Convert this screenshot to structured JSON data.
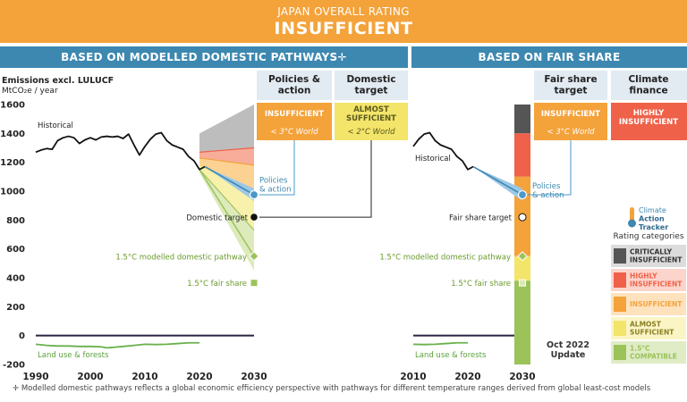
{
  "header": {
    "title": "JAPAN OVERALL RATING",
    "rating": "INSUFFICIENT"
  },
  "sections": {
    "left": "BASED ON MODELLED DOMESTIC PATHWAYS✛",
    "right": "BASED ON FAIR SHARE"
  },
  "columns": [
    {
      "id": "policies",
      "title_lines": [
        "Policies &",
        "action"
      ],
      "rating_lines": [
        "INSUFFICIENT"
      ],
      "warming": "< 3°C World",
      "color": "#f4a23a",
      "header_bg": "#e2eaf2"
    },
    {
      "id": "domestic",
      "title_lines": [
        "Domestic",
        "target"
      ],
      "rating_lines": [
        "ALMOST",
        "SUFFICIENT"
      ],
      "warming": "< 2°C World",
      "color": "#f3e46a",
      "header_bg": "#e2eaf2"
    },
    {
      "id": "fairshare",
      "title_lines": [
        "Fair share",
        "target"
      ],
      "rating_lines": [
        "INSUFFICIENT"
      ],
      "warming": "< 3°C World",
      "color": "#f4a23a",
      "header_bg": "#e2eaf2"
    },
    {
      "id": "finance",
      "title_lines": [
        "Climate",
        "finance"
      ],
      "rating_lines": [
        "HIGHLY",
        "INSUFFICIENT"
      ],
      "warming": "",
      "color": "#ef6149",
      "header_bg": "#e2eaf2"
    }
  ],
  "legend": {
    "logo_lines": [
      "Climate",
      "Action",
      "Tracker"
    ],
    "title": "Rating categories",
    "items": [
      {
        "lines": [
          "CRITICALLY",
          "INSUFFICIENT"
        ],
        "color": "#555555",
        "bg": "#dcdcdc"
      },
      {
        "lines": [
          "HIGHLY",
          "INSUFFICIENT"
        ],
        "color": "#ef6149",
        "bg": "#fbd4cb"
      },
      {
        "lines": [
          "INSUFFICIENT"
        ],
        "color": "#f4a23a",
        "bg": "#fde2bd"
      },
      {
        "lines": [
          "ALMOST",
          "SUFFICIENT"
        ],
        "color": "#f3e46a",
        "bg": "#fbf5c6"
      },
      {
        "lines": [
          "1.5°C",
          "COMPATIBLE"
        ],
        "color": "#9bc35a",
        "bg": "#dfecc6"
      }
    ]
  },
  "update": [
    "Oct 2022",
    "Update"
  ],
  "footnote": "✛ Modelled domestic pathways reflects a global economic efficiency perspective with pathways for different temperature ranges derived from global least-cost models",
  "colors": {
    "orange": "#f4a23a",
    "yellow": "#f3e46a",
    "red": "#ef6149",
    "green": "#9bc35a",
    "grey": "#555555",
    "blue": "#3d88b0",
    "line_blue": "#4a98c9",
    "lulucf": "#6ab04c"
  },
  "chart_data": [
    {
      "type": "line",
      "title": "Emissions excl. LULUCF",
      "ylabel": "MtCO₂e / year",
      "ylim": [
        -200,
        1600
      ],
      "yticks": [
        -200,
        0,
        200,
        400,
        600,
        800,
        1000,
        1200,
        1400,
        1600
      ],
      "xlim": [
        1990,
        2030
      ],
      "xticks": [
        1990,
        2000,
        2010,
        2020,
        2030
      ],
      "historical_label": "Historical",
      "lulucf_label": "Land use & forests",
      "historical": {
        "x": [
          1990,
          1991,
          1992,
          1993,
          1994,
          1995,
          1996,
          1997,
          1998,
          1999,
          2000,
          2001,
          2002,
          2003,
          2004,
          2005,
          2006,
          2007,
          2008,
          2009,
          2010,
          2011,
          2012,
          2013,
          2014,
          2015,
          2016,
          2017,
          2018,
          2019,
          2020,
          2021
        ],
        "y": [
          1270,
          1285,
          1295,
          1290,
          1350,
          1370,
          1380,
          1370,
          1330,
          1355,
          1370,
          1355,
          1375,
          1380,
          1375,
          1380,
          1365,
          1395,
          1320,
          1250,
          1310,
          1360,
          1395,
          1405,
          1350,
          1320,
          1305,
          1290,
          1240,
          1210,
          1150,
          1170
        ]
      },
      "lulucf": {
        "x": [
          1990,
          1992,
          1994,
          1996,
          1998,
          2000,
          2002,
          2003,
          2004,
          2006,
          2008,
          2010,
          2012,
          2014,
          2016,
          2018,
          2020
        ],
        "y": [
          -60,
          -68,
          -72,
          -72,
          -75,
          -75,
          -78,
          -85,
          -82,
          -75,
          -68,
          -60,
          -62,
          -60,
          -55,
          -50,
          -50
        ]
      },
      "policies_projection": {
        "x": [
          2021,
          2030
        ],
        "y": [
          1170,
          975
        ]
      },
      "policies_label": [
        "Policies",
        "& action"
      ],
      "domestic_target": {
        "x": 2030,
        "y": 820,
        "label": "Domestic target"
      },
      "pathway_15": {
        "x": [
          2020,
          2030
        ],
        "y": [
          1150,
          550
        ],
        "label": "1.5°C modelled domestic pathway"
      },
      "fair_share_15": {
        "x": 2030,
        "y": 365,
        "label": "1.5°C fair share"
      },
      "bands": [
        {
          "category": "critically",
          "color": "#b9b9b9",
          "x": [
            2020,
            2030
          ],
          "lower": [
            1270,
            1300
          ],
          "upper": [
            1400,
            1600
          ]
        },
        {
          "category": "highly",
          "color": "#f7a993",
          "x": [
            2020,
            2030
          ],
          "lower": [
            1230,
            1180
          ],
          "upper": [
            1270,
            1300
          ]
        },
        {
          "category": "insufficient",
          "color": "#fbd08c",
          "x": [
            2020,
            2030
          ],
          "lower": [
            1180,
            990
          ],
          "upper": [
            1230,
            1180
          ]
        },
        {
          "category": "almost",
          "color": "#f8f0a6",
          "x": [
            2020,
            2030
          ],
          "lower": [
            1150,
            730
          ],
          "upper": [
            1180,
            990
          ]
        },
        {
          "category": "compatible",
          "color": "#dbe9b8",
          "x": [
            2020,
            2030
          ],
          "lower": [
            1130,
            450
          ],
          "upper": [
            1150,
            730
          ]
        }
      ]
    },
    {
      "type": "line",
      "title": "Fair share",
      "ylim": [
        -200,
        1600
      ],
      "xlim": [
        2010,
        2030
      ],
      "xticks": [
        2010,
        2020,
        2030
      ],
      "historical_label": "Historical",
      "lulucf_label": "Land use & forests",
      "historical": {
        "x": [
          2010,
          2011,
          2012,
          2013,
          2014,
          2015,
          2016,
          2017,
          2018,
          2019,
          2020,
          2021
        ],
        "y": [
          1310,
          1360,
          1395,
          1405,
          1350,
          1320,
          1305,
          1290,
          1240,
          1210,
          1150,
          1170
        ]
      },
      "lulucf": {
        "x": [
          2010,
          2012,
          2014,
          2016,
          2018,
          2020
        ],
        "y": [
          -60,
          -62,
          -60,
          -55,
          -50,
          -50
        ]
      },
      "policies_projection": {
        "x": [
          2021,
          2030
        ],
        "y": [
          1170,
          975
        ]
      },
      "policies_label": [
        "Policies",
        "& action"
      ],
      "fair_share_target": {
        "x": 2030,
        "y": 820,
        "label": "Fair share target"
      },
      "pathway_15": {
        "x": 2030,
        "y": 550,
        "label": "1.5°C modelled domestic pathway"
      },
      "fair_share_15": {
        "x": 2030,
        "y": 365,
        "label": "1.5°C fair share"
      },
      "bar_segments": [
        {
          "category": "critically",
          "color": "#555555",
          "from": 1400,
          "to": 1600
        },
        {
          "category": "highly",
          "color": "#ef6149",
          "from": 1100,
          "to": 1400
        },
        {
          "category": "insufficient",
          "color": "#f4a23a",
          "from": 550,
          "to": 1100
        },
        {
          "category": "almost",
          "color": "#f3e46a",
          "from": 380,
          "to": 550
        },
        {
          "category": "compatible",
          "color": "#9bc35a",
          "from": -200,
          "to": 380
        }
      ]
    }
  ]
}
